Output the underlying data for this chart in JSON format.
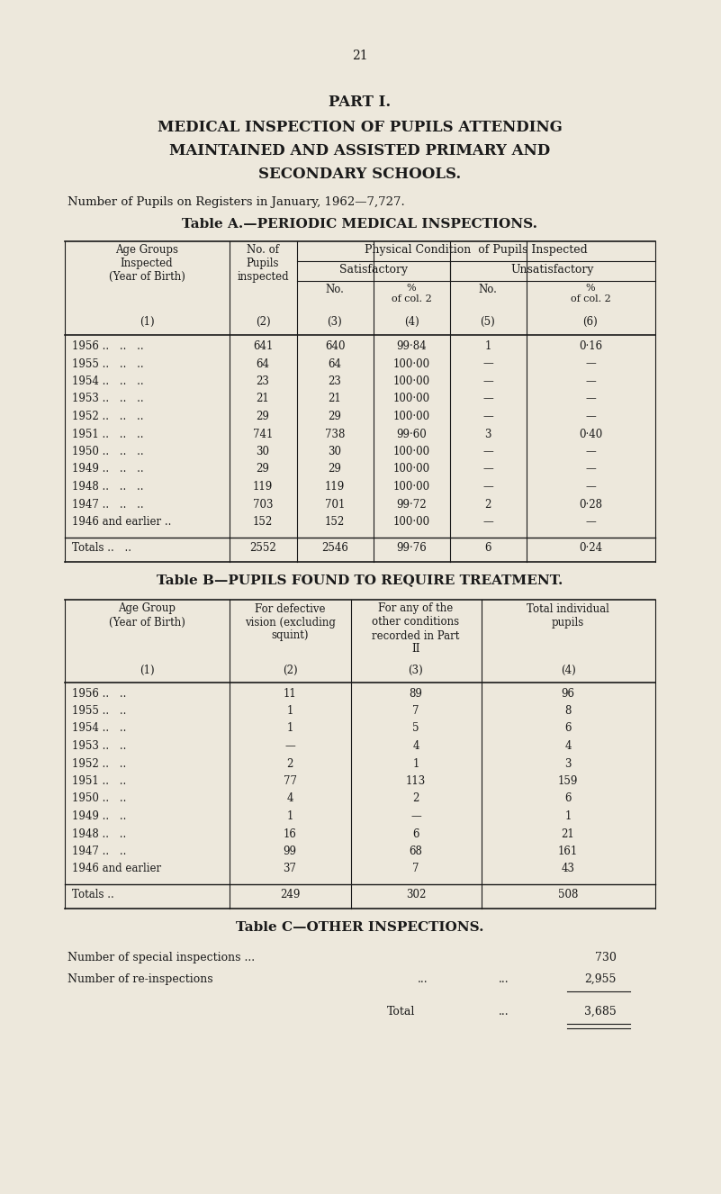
{
  "bg_color": "#EDE8DC",
  "text_color": "#1a1a1a",
  "page_number": "21",
  "title_line1": "PART I.",
  "title_line2": "MEDICAL INSPECTION OF PUPILS ATTENDING",
  "title_line3": "MAINTAINED AND ASSISTED PRIMARY AND",
  "title_line4": "SECONDARY SCHOOLS.",
  "subtitle": "Number of Pupils on Registers in January, 1962—7,727.",
  "table_a_title": "Table A.—PERIODIC MEDICAL INSPECTIONS.",
  "table_a_rows": [
    [
      "1956 .. .. ..",
      "641",
      "640",
      "99·84",
      "1",
      "0·16"
    ],
    [
      "1955 .. .. ..",
      "64",
      "64",
      "100·00",
      "—",
      "—"
    ],
    [
      "1954 .. .. ..",
      "23",
      "23",
      "100·00",
      "—",
      "—"
    ],
    [
      "1953 .. .. ..",
      "21",
      "21",
      "100·00",
      "—",
      "—"
    ],
    [
      "1952 .. .. ..",
      "29",
      "29",
      "100·00",
      "—",
      "—"
    ],
    [
      "1951 .. .. ..",
      "741",
      "738",
      "99·60",
      "3",
      "0·40"
    ],
    [
      "1950 .. .. ..",
      "30",
      "30",
      "100·00",
      "—",
      "—"
    ],
    [
      "1949 .. .. ..",
      "29",
      "29",
      "100·00",
      "—",
      "—"
    ],
    [
      "1948 .. .. ..",
      "119",
      "119",
      "100·00",
      "—",
      "—"
    ],
    [
      "1947 .. .. ..",
      "703",
      "701",
      "99·72",
      "2",
      "0·28"
    ],
    [
      "1946 and earlier ..",
      "152",
      "152",
      "100·00",
      "—",
      "—"
    ]
  ],
  "table_a_totals": [
    "Totals .. ..",
    "2552",
    "2546",
    "99·76",
    "6",
    "0·24"
  ],
  "table_b_title": "Table B—PUPILS FOUND TO REQUIRE TREATMENT.",
  "table_b_rows": [
    [
      "1956 .. ..",
      "11",
      "89",
      "96"
    ],
    [
      "1955 .. ..",
      "1",
      "7",
      "8"
    ],
    [
      "1954 .. ..",
      "1",
      "5",
      "6"
    ],
    [
      "1953 .. ..",
      "—",
      "4",
      "4"
    ],
    [
      "1952 .. ..",
      "2",
      "1",
      "3"
    ],
    [
      "1951 .. ..",
      "77",
      "113",
      "159"
    ],
    [
      "1950 .. ..",
      "4",
      "2",
      "6"
    ],
    [
      "1949 .. ..",
      "1",
      "—",
      "1"
    ],
    [
      "1948 .. ..",
      "16",
      "6",
      "21"
    ],
    [
      "1947 .. ..",
      "99",
      "68",
      "161"
    ],
    [
      "1946 and earlier",
      "37",
      "7",
      "43"
    ]
  ],
  "table_b_totals": [
    "Totals ..",
    "249",
    "302",
    "508"
  ],
  "table_c_title": "Table C—OTHER INSPECTIONS.",
  "table_c_row1_label": "Number of special inspections ...",
  "table_c_row1_val": "730",
  "table_c_row2_label": "Number of re-inspections",
  "table_c_row2_dots": "...",
  "table_c_row2_val": "2,955",
  "table_c_total_label": "Total",
  "table_c_total_dots": "...",
  "table_c_total_val": "3,685"
}
